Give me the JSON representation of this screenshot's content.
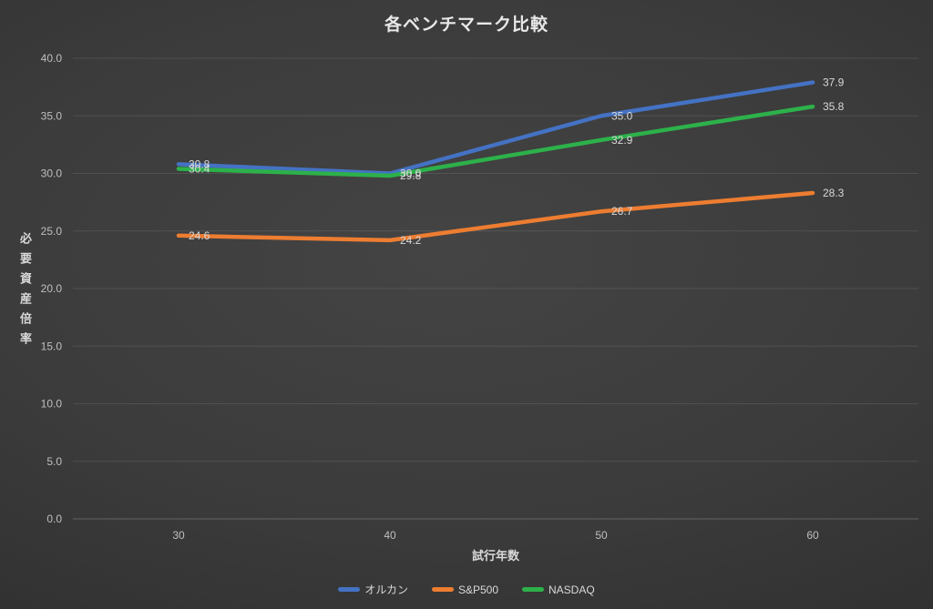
{
  "chart_data": {
    "type": "line",
    "title": "各ベンチマーク比較",
    "xlabel": "試行年数",
    "ylabel": "必要資産倍率",
    "categories": [
      30,
      40,
      50,
      60
    ],
    "series": [
      {
        "name": "オルカン",
        "color": "#4472C4",
        "values": [
          30.8,
          30.0,
          35.0,
          37.9
        ]
      },
      {
        "name": "S&P500",
        "color": "#ED7D31",
        "values": [
          24.6,
          24.2,
          26.7,
          28.3
        ]
      },
      {
        "name": "NASDAQ",
        "color": "#2DB14A",
        "values": [
          30.4,
          29.8,
          32.9,
          35.8
        ]
      }
    ],
    "y_axis": {
      "min": 0,
      "max": 40,
      "step": 5,
      "tick_labels": [
        "40.0",
        "35.0",
        "30.0",
        "25.0",
        "20.0",
        "15.0",
        "10.0",
        "5.0",
        "0.0"
      ]
    },
    "x_tick_labels": [
      "30",
      "40",
      "50",
      "60"
    ],
    "data_labels_shown": true,
    "grid": true,
    "legend_position": "bottom",
    "colors": {
      "text": "#d9d9d9",
      "tick_text": "#bfbfbf",
      "title_text": "#e8e8e8",
      "background": "#333333"
    }
  }
}
